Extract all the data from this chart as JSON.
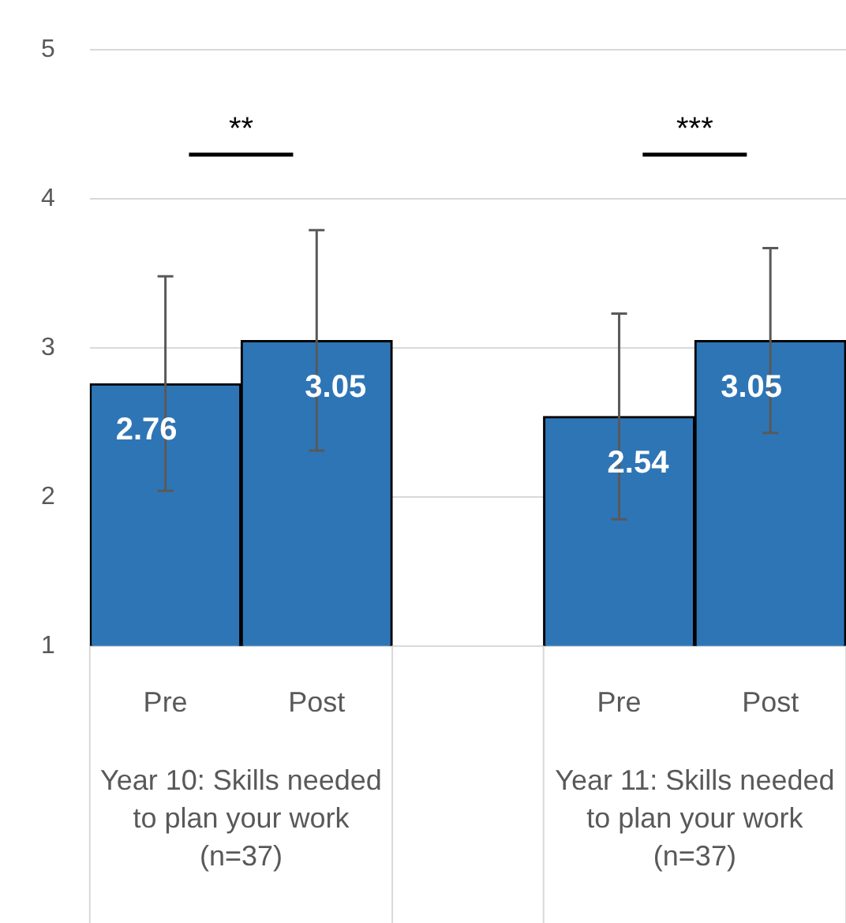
{
  "chart_data": {
    "type": "bar",
    "categories": [
      "Pre",
      "Post",
      null,
      "Pre",
      "Post"
    ],
    "values": [
      2.76,
      3.05,
      null,
      2.54,
      3.05
    ],
    "errors": [
      0.72,
      0.74,
      null,
      0.69,
      0.62
    ],
    "color": "#2e75b6",
    "ylim": [
      1,
      5
    ],
    "yticks": [
      1,
      2,
      3,
      4,
      5
    ],
    "grid": "y",
    "data_labels": true,
    "legend": false,
    "annotations": [
      "**",
      "***",
      "Year 10: Skills needed to plan your work (n=37)",
      "Year 11: Skills needed to plan your work (n=37)"
    ]
  }
}
